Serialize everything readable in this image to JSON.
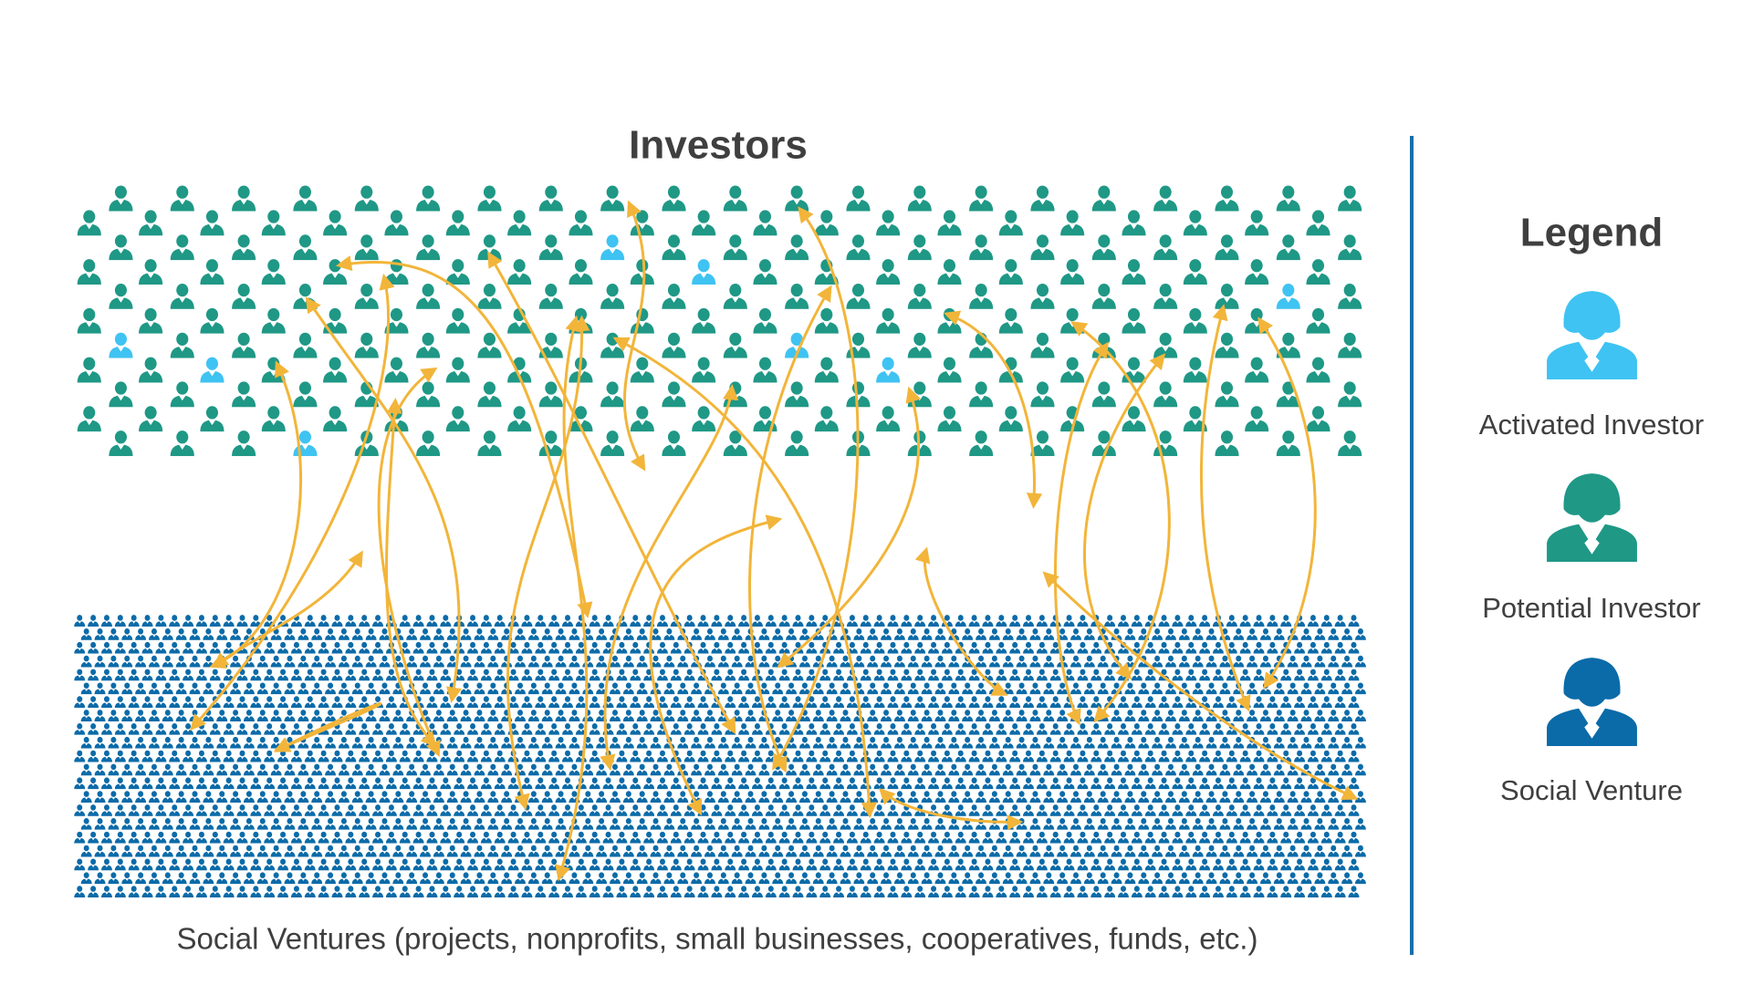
{
  "header": {
    "title": "Investors"
  },
  "legend": {
    "title": "Legend",
    "items": [
      {
        "label": "Activated Investor"
      },
      {
        "label": "Potential Investor"
      },
      {
        "label": "Social Venture"
      }
    ]
  },
  "footer": {
    "caption": "Social Ventures (projects, nonprofits, small businesses, cooperatives, funds, etc.)"
  }
}
